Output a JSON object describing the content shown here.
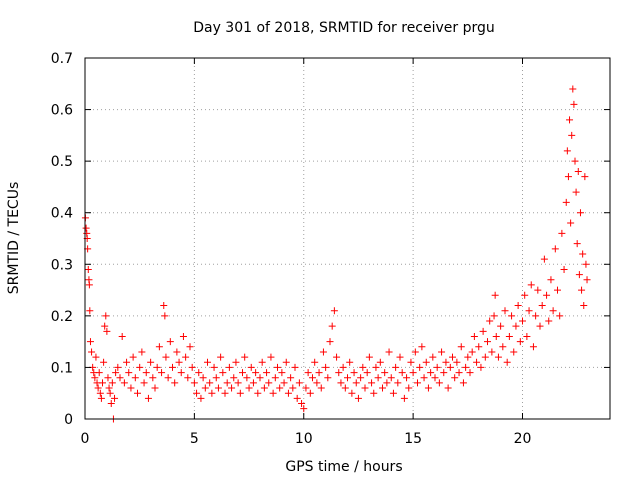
{
  "chart_data": {
    "type": "scatter",
    "title": "Day 301 of 2018, SRMTID for receiver prgu",
    "xlabel": "GPS time / hours",
    "ylabel": "SRMTID / TECUs",
    "xlim": [
      0,
      24
    ],
    "ylim": [
      0,
      0.7
    ],
    "xticks": [
      0,
      5,
      10,
      15,
      20
    ],
    "xtick_labels": [
      "0",
      "5",
      "10",
      "15",
      "20"
    ],
    "yticks": [
      0,
      0.1,
      0.2,
      0.3,
      0.4,
      0.5,
      0.6,
      0.7
    ],
    "ytick_labels": [
      "0",
      "0.1",
      "0.2",
      "0.3",
      "0.4",
      "0.5",
      "0.6",
      "0.7"
    ],
    "grid": true,
    "marker": "+",
    "series": [
      {
        "name": "SRMTID",
        "color": "#ff0000",
        "points": [
          [
            0.02,
            0.39
          ],
          [
            0.05,
            0.37
          ],
          [
            0.08,
            0.36
          ],
          [
            0.1,
            0.35
          ],
          [
            0.12,
            0.33
          ],
          [
            0.15,
            0.29
          ],
          [
            0.18,
            0.27
          ],
          [
            0.2,
            0.26
          ],
          [
            0.22,
            0.21
          ],
          [
            0.25,
            0.15
          ],
          [
            0.3,
            0.13
          ],
          [
            0.35,
            0.1
          ],
          [
            0.4,
            0.09
          ],
          [
            0.45,
            0.08
          ],
          [
            0.5,
            0.12
          ],
          [
            0.55,
            0.07
          ],
          [
            0.6,
            0.06
          ],
          [
            0.65,
            0.09
          ],
          [
            0.7,
            0.05
          ],
          [
            0.75,
            0.04
          ],
          [
            0.8,
            0.07
          ],
          [
            0.85,
            0.11
          ],
          [
            0.9,
            0.18
          ],
          [
            0.95,
            0.2
          ],
          [
            1.0,
            0.17
          ],
          [
            1.05,
            0.08
          ],
          [
            1.1,
            0.06
          ],
          [
            1.15,
            0.05
          ],
          [
            1.2,
            0.03
          ],
          [
            1.25,
            0.07
          ],
          [
            1.3,
            0.0
          ],
          [
            1.35,
            0.04
          ],
          [
            1.4,
            0.09
          ],
          [
            1.5,
            0.1
          ],
          [
            1.6,
            0.08
          ],
          [
            1.7,
            0.16
          ],
          [
            1.8,
            0.07
          ],
          [
            1.9,
            0.11
          ],
          [
            2.0,
            0.09
          ],
          [
            2.1,
            0.06
          ],
          [
            2.2,
            0.12
          ],
          [
            2.3,
            0.08
          ],
          [
            2.4,
            0.05
          ],
          [
            2.5,
            0.1
          ],
          [
            2.6,
            0.13
          ],
          [
            2.7,
            0.07
          ],
          [
            2.8,
            0.09
          ],
          [
            2.9,
            0.04
          ],
          [
            3.0,
            0.11
          ],
          [
            3.1,
            0.08
          ],
          [
            3.2,
            0.06
          ],
          [
            3.3,
            0.1
          ],
          [
            3.4,
            0.14
          ],
          [
            3.5,
            0.09
          ],
          [
            3.6,
            0.22
          ],
          [
            3.65,
            0.2
          ],
          [
            3.7,
            0.12
          ],
          [
            3.8,
            0.08
          ],
          [
            3.9,
            0.15
          ],
          [
            4.0,
            0.1
          ],
          [
            4.1,
            0.07
          ],
          [
            4.2,
            0.13
          ],
          [
            4.3,
            0.11
          ],
          [
            4.4,
            0.09
          ],
          [
            4.5,
            0.16
          ],
          [
            4.6,
            0.12
          ],
          [
            4.7,
            0.08
          ],
          [
            4.8,
            0.14
          ],
          [
            4.9,
            0.1
          ],
          [
            5.0,
            0.07
          ],
          [
            5.1,
            0.05
          ],
          [
            5.2,
            0.09
          ],
          [
            5.3,
            0.04
          ],
          [
            5.4,
            0.08
          ],
          [
            5.5,
            0.06
          ],
          [
            5.6,
            0.11
          ],
          [
            5.7,
            0.07
          ],
          [
            5.8,
            0.05
          ],
          [
            5.9,
            0.1
          ],
          [
            6.0,
            0.08
          ],
          [
            6.1,
            0.06
          ],
          [
            6.2,
            0.12
          ],
          [
            6.3,
            0.09
          ],
          [
            6.4,
            0.05
          ],
          [
            6.5,
            0.07
          ],
          [
            6.6,
            0.1
          ],
          [
            6.7,
            0.06
          ],
          [
            6.8,
            0.08
          ],
          [
            6.9,
            0.11
          ],
          [
            7.0,
            0.07
          ],
          [
            7.1,
            0.05
          ],
          [
            7.2,
            0.09
          ],
          [
            7.3,
            0.12
          ],
          [
            7.4,
            0.08
          ],
          [
            7.5,
            0.06
          ],
          [
            7.6,
            0.1
          ],
          [
            7.7,
            0.07
          ],
          [
            7.8,
            0.09
          ],
          [
            7.9,
            0.05
          ],
          [
            8.0,
            0.08
          ],
          [
            8.1,
            0.11
          ],
          [
            8.2,
            0.06
          ],
          [
            8.3,
            0.09
          ],
          [
            8.4,
            0.07
          ],
          [
            8.5,
            0.12
          ],
          [
            8.6,
            0.05
          ],
          [
            8.7,
            0.08
          ],
          [
            8.8,
            0.1
          ],
          [
            8.9,
            0.06
          ],
          [
            9.0,
            0.09
          ],
          [
            9.1,
            0.07
          ],
          [
            9.2,
            0.11
          ],
          [
            9.3,
            0.05
          ],
          [
            9.4,
            0.08
          ],
          [
            9.5,
            0.06
          ],
          [
            9.6,
            0.1
          ],
          [
            9.7,
            0.04
          ],
          [
            9.8,
            0.07
          ],
          [
            9.9,
            0.03
          ],
          [
            10.0,
            0.02
          ],
          [
            10.1,
            0.06
          ],
          [
            10.2,
            0.09
          ],
          [
            10.3,
            0.05
          ],
          [
            10.4,
            0.08
          ],
          [
            10.5,
            0.11
          ],
          [
            10.6,
            0.07
          ],
          [
            10.7,
            0.09
          ],
          [
            10.8,
            0.06
          ],
          [
            10.9,
            0.13
          ],
          [
            11.0,
            0.1
          ],
          [
            11.1,
            0.08
          ],
          [
            11.2,
            0.15
          ],
          [
            11.3,
            0.18
          ],
          [
            11.4,
            0.21
          ],
          [
            11.5,
            0.12
          ],
          [
            11.6,
            0.09
          ],
          [
            11.7,
            0.07
          ],
          [
            11.8,
            0.1
          ],
          [
            11.9,
            0.06
          ],
          [
            12.0,
            0.08
          ],
          [
            12.1,
            0.11
          ],
          [
            12.2,
            0.05
          ],
          [
            12.3,
            0.09
          ],
          [
            12.4,
            0.07
          ],
          [
            12.5,
            0.04
          ],
          [
            12.6,
            0.08
          ],
          [
            12.7,
            0.1
          ],
          [
            12.8,
            0.06
          ],
          [
            12.9,
            0.09
          ],
          [
            13.0,
            0.12
          ],
          [
            13.1,
            0.07
          ],
          [
            13.2,
            0.05
          ],
          [
            13.3,
            0.1
          ],
          [
            13.4,
            0.08
          ],
          [
            13.5,
            0.11
          ],
          [
            13.6,
            0.06
          ],
          [
            13.7,
            0.09
          ],
          [
            13.8,
            0.07
          ],
          [
            13.9,
            0.13
          ],
          [
            14.0,
            0.08
          ],
          [
            14.1,
            0.05
          ],
          [
            14.2,
            0.1
          ],
          [
            14.3,
            0.07
          ],
          [
            14.4,
            0.12
          ],
          [
            14.5,
            0.09
          ],
          [
            14.6,
            0.04
          ],
          [
            14.7,
            0.08
          ],
          [
            14.8,
            0.06
          ],
          [
            14.9,
            0.11
          ],
          [
            15.0,
            0.09
          ],
          [
            15.1,
            0.13
          ],
          [
            15.2,
            0.07
          ],
          [
            15.3,
            0.1
          ],
          [
            15.4,
            0.14
          ],
          [
            15.5,
            0.08
          ],
          [
            15.6,
            0.11
          ],
          [
            15.7,
            0.06
          ],
          [
            15.8,
            0.09
          ],
          [
            15.9,
            0.12
          ],
          [
            16.0,
            0.08
          ],
          [
            16.1,
            0.1
          ],
          [
            16.2,
            0.07
          ],
          [
            16.3,
            0.13
          ],
          [
            16.4,
            0.09
          ],
          [
            16.5,
            0.11
          ],
          [
            16.6,
            0.06
          ],
          [
            16.7,
            0.1
          ],
          [
            16.8,
            0.12
          ],
          [
            16.9,
            0.08
          ],
          [
            17.0,
            0.11
          ],
          [
            17.1,
            0.09
          ],
          [
            17.2,
            0.14
          ],
          [
            17.3,
            0.07
          ],
          [
            17.4,
            0.1
          ],
          [
            17.5,
            0.12
          ],
          [
            17.6,
            0.09
          ],
          [
            17.7,
            0.13
          ],
          [
            17.8,
            0.16
          ],
          [
            17.9,
            0.11
          ],
          [
            18.0,
            0.14
          ],
          [
            18.1,
            0.1
          ],
          [
            18.2,
            0.17
          ],
          [
            18.3,
            0.12
          ],
          [
            18.4,
            0.15
          ],
          [
            18.5,
            0.19
          ],
          [
            18.6,
            0.13
          ],
          [
            18.7,
            0.2
          ],
          [
            18.75,
            0.24
          ],
          [
            18.8,
            0.16
          ],
          [
            18.9,
            0.12
          ],
          [
            19.0,
            0.18
          ],
          [
            19.1,
            0.14
          ],
          [
            19.2,
            0.21
          ],
          [
            19.3,
            0.11
          ],
          [
            19.4,
            0.16
          ],
          [
            19.5,
            0.2
          ],
          [
            19.6,
            0.13
          ],
          [
            19.7,
            0.18
          ],
          [
            19.8,
            0.22
          ],
          [
            19.9,
            0.15
          ],
          [
            20.0,
            0.19
          ],
          [
            20.1,
            0.24
          ],
          [
            20.2,
            0.16
          ],
          [
            20.3,
            0.21
          ],
          [
            20.4,
            0.26
          ],
          [
            20.5,
            0.14
          ],
          [
            20.6,
            0.2
          ],
          [
            20.7,
            0.25
          ],
          [
            20.8,
            0.18
          ],
          [
            20.9,
            0.22
          ],
          [
            21.0,
            0.31
          ],
          [
            21.1,
            0.24
          ],
          [
            21.2,
            0.19
          ],
          [
            21.3,
            0.27
          ],
          [
            21.4,
            0.21
          ],
          [
            21.5,
            0.33
          ],
          [
            21.6,
            0.25
          ],
          [
            21.7,
            0.2
          ],
          [
            21.8,
            0.36
          ],
          [
            21.9,
            0.29
          ],
          [
            22.0,
            0.42
          ],
          [
            22.05,
            0.52
          ],
          [
            22.1,
            0.47
          ],
          [
            22.15,
            0.58
          ],
          [
            22.2,
            0.38
          ],
          [
            22.25,
            0.55
          ],
          [
            22.3,
            0.64
          ],
          [
            22.35,
            0.61
          ],
          [
            22.4,
            0.5
          ],
          [
            22.45,
            0.44
          ],
          [
            22.5,
            0.34
          ],
          [
            22.55,
            0.48
          ],
          [
            22.6,
            0.28
          ],
          [
            22.65,
            0.4
          ],
          [
            22.7,
            0.25
          ],
          [
            22.75,
            0.32
          ],
          [
            22.8,
            0.22
          ],
          [
            22.85,
            0.47
          ],
          [
            22.9,
            0.3
          ],
          [
            22.95,
            0.27
          ]
        ]
      }
    ]
  }
}
